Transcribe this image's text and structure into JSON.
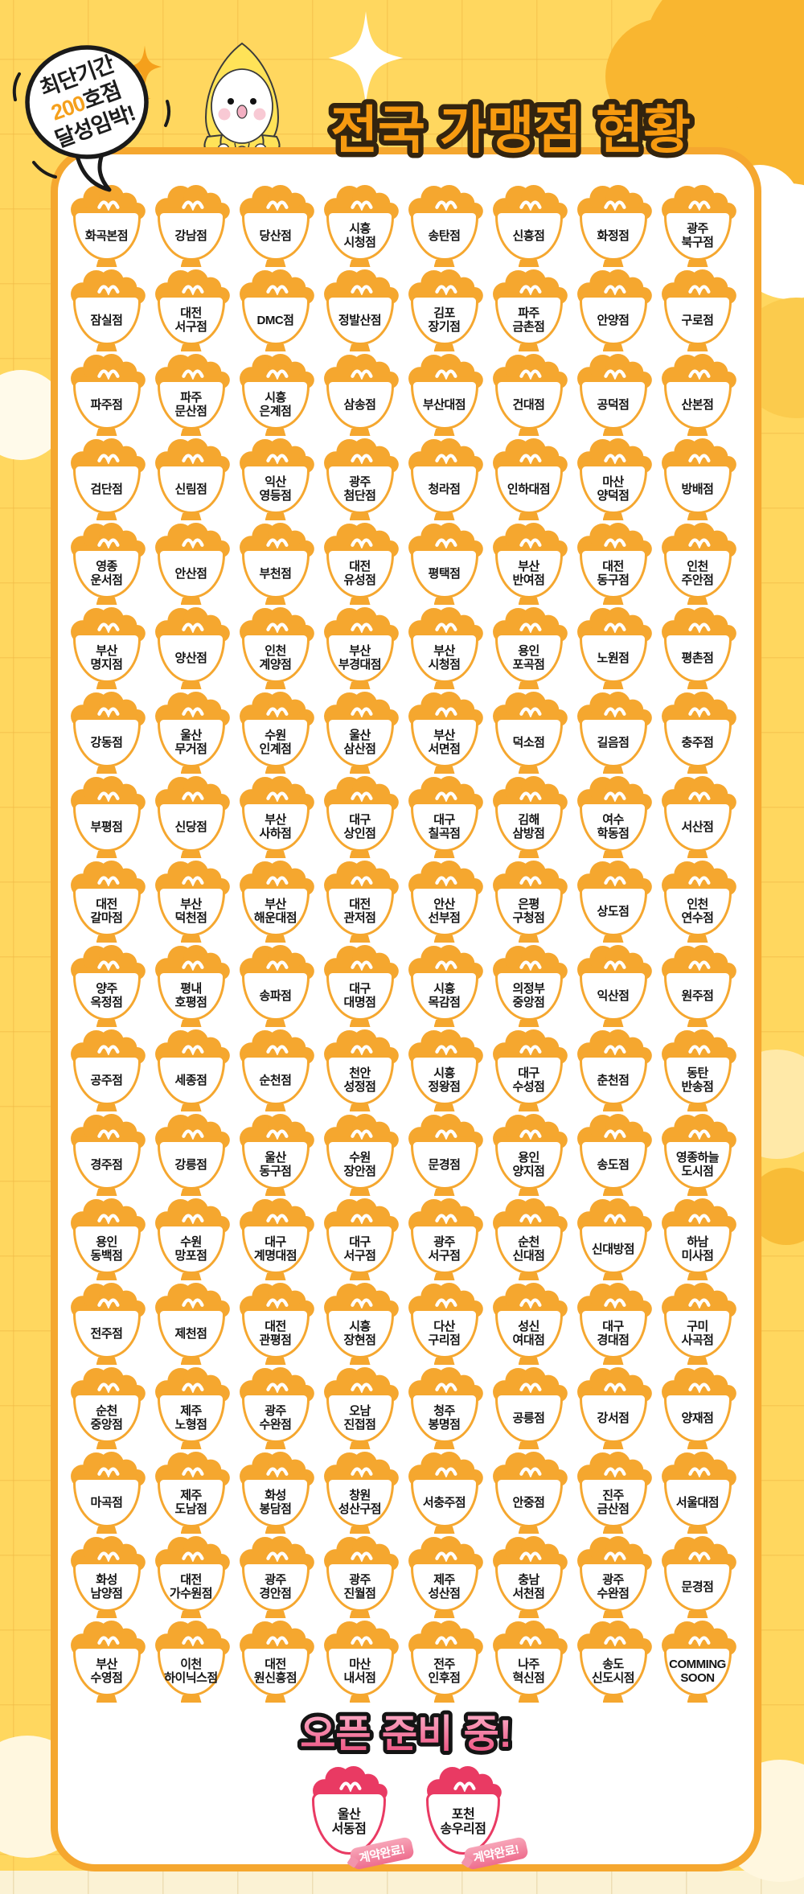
{
  "header": {
    "bubble": {
      "line1": "최단기간",
      "line2_highlight": "200",
      "line2_rest": "호점",
      "line3": "달성임박!"
    },
    "title": "전국 가맹점 현황"
  },
  "icons": {
    "mascot": "rice-ball-mascot",
    "store": "rice-bowl-icon",
    "sparkle": "sparkle-icon"
  },
  "colors": {
    "background_yellow": "#FFD75F",
    "panel_border_orange": "#F5A72F",
    "title_orange": "#F79A10",
    "title_outline": "#33240F",
    "bowl_orange": "#F5A72F",
    "coming_soon_pink": "#E93A63",
    "badge_pink": "#EE6D8E",
    "bottom_cream": "#FBF2D4"
  },
  "stores": [
    "화곡본점",
    "강남점",
    "당산점",
    "시흥\n시청점",
    "송탄점",
    "신흥점",
    "화정점",
    "광주\n북구점",
    "잠실점",
    "대전\n서구점",
    "DMC점",
    "정발산점",
    "김포\n장기점",
    "파주\n금촌점",
    "안양점",
    "구로점",
    "파주점",
    "파주\n문산점",
    "시흥\n은계점",
    "삼송점",
    "부산대점",
    "건대점",
    "공덕점",
    "산본점",
    "검단점",
    "신림점",
    "익산\n영등점",
    "광주\n첨단점",
    "청라점",
    "인하대점",
    "마산\n양덕점",
    "방배점",
    "영종\n운서점",
    "안산점",
    "부천점",
    "대전\n유성점",
    "평택점",
    "부산\n반여점",
    "대전\n동구점",
    "인천\n주안점",
    "부산\n명지점",
    "양산점",
    "인천\n계양점",
    "부산\n부경대점",
    "부산\n시청점",
    "용인\n포곡점",
    "노원점",
    "평촌점",
    "강동점",
    "울산\n무거점",
    "수원\n인계점",
    "울산\n삼산점",
    "부산\n서면점",
    "덕소점",
    "길음점",
    "충주점",
    "부평점",
    "신당점",
    "부산\n사하점",
    "대구\n상인점",
    "대구\n칠곡점",
    "김해\n삼방점",
    "여수\n학동점",
    "서산점",
    "대전\n갈마점",
    "부산\n덕천점",
    "부산\n해운대점",
    "대전\n관저점",
    "안산\n선부점",
    "은평\n구청점",
    "상도점",
    "인천\n연수점",
    "양주\n옥정점",
    "평내\n호평점",
    "송파점",
    "대구\n대명점",
    "시흥\n목감점",
    "의정부\n중앙점",
    "익산점",
    "원주점",
    "공주점",
    "세종점",
    "순천점",
    "천안\n성정점",
    "시흥\n정왕점",
    "대구\n수성점",
    "춘천점",
    "동탄\n반송점",
    "경주점",
    "강릉점",
    "울산\n동구점",
    "수원\n장안점",
    "문경점",
    "용인\n양지점",
    "송도점",
    "영종하늘\n도시점",
    "용인\n동백점",
    "수원\n망포점",
    "대구\n계명대점",
    "대구\n서구점",
    "광주\n서구점",
    "순천\n신대점",
    "신대방점",
    "하남\n미사점",
    "전주점",
    "제천점",
    "대전\n관평점",
    "시흥\n장현점",
    "다산\n구리점",
    "성신\n여대점",
    "대구\n경대점",
    "구미\n사곡점",
    "순천\n중앙점",
    "제주\n노형점",
    "광주\n수완점",
    "오남\n진접점",
    "청주\n봉명점",
    "공릉점",
    "강서점",
    "양재점",
    "마곡점",
    "제주\n도남점",
    "화성\n봉담점",
    "창원\n성산구점",
    "서충주점",
    "안중점",
    "진주\n금산점",
    "서울대점",
    "화성\n남양점",
    "대전\n가수원점",
    "광주\n경안점",
    "광주\n진월점",
    "제주\n성산점",
    "충남\n서천점",
    "광주\n수완점",
    "문경점",
    "부산\n수영점",
    "이천\n하이닉스점",
    "대전\n원신흥점",
    "마산\n내서점",
    "전주\n인후점",
    "나주\n혁신점",
    "송도\n신도시점",
    "COMMING\nSOON"
  ],
  "coming_soon": {
    "title": "오픈 준비 중!",
    "stores": [
      {
        "name": "울산\n서동점",
        "badge": "계약완료!"
      },
      {
        "name": "포천\n송우리점",
        "badge": "계약완료!"
      }
    ]
  }
}
